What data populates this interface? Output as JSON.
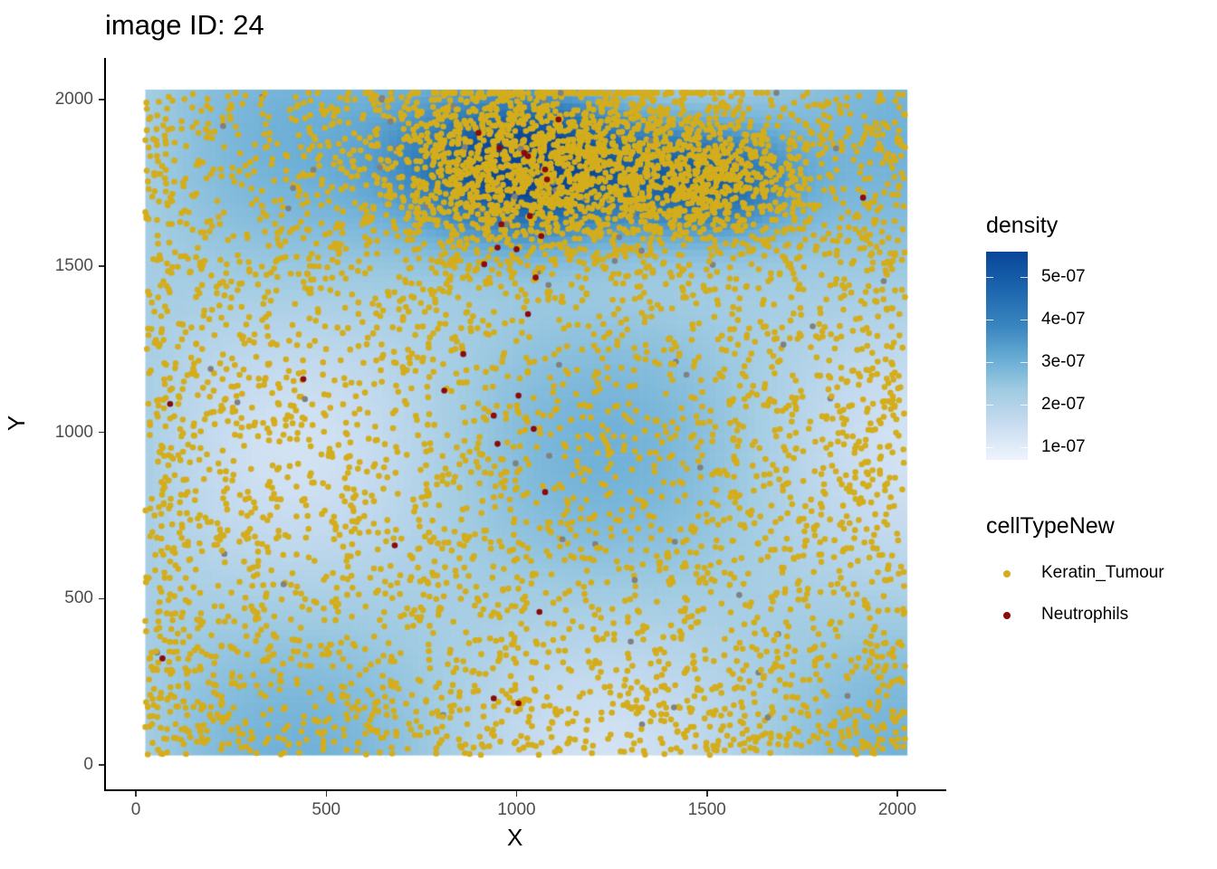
{
  "title": "image ID: 24",
  "axes": {
    "x_title": "X",
    "y_title": "Y",
    "x_ticks": [
      "0",
      "500",
      "1000",
      "1500",
      "2000"
    ],
    "y_ticks": [
      "0",
      "500",
      "1000",
      "1500",
      "2000"
    ]
  },
  "legend": {
    "density_title": "density",
    "density_labels": [
      "5e-07",
      "4e-07",
      "3e-07",
      "2e-07",
      "1e-07"
    ],
    "celltype_title": "cellTypeNew",
    "celltype_items": [
      {
        "label": "Keratin_Tumour",
        "color": "#d4ad1c"
      },
      {
        "label": "Neutrophils",
        "color": "#8b0a0a"
      }
    ]
  },
  "chart_data": {
    "type": "scatter",
    "title": "image ID: 24",
    "xlabel": "X",
    "ylabel": "Y",
    "xlim": [
      0,
      2030
    ],
    "ylim": [
      0,
      2030
    ],
    "grid": false,
    "legend_position": "right",
    "background": "2D density heatmap (Blues), high density near X 700-1700, Y 1500-2000",
    "density_range": [
      5e-08,
      5.6e-07
    ],
    "series": [
      {
        "name": "Keratin_Tumour",
        "color": "#d4ad1c",
        "approx_count": 5500,
        "note": "dense cluster X 650-1700, Y 1400-2020; scattered uniformly elsewhere X 25-2020, Y 30-2020"
      },
      {
        "name": "Other (grey)",
        "color": "#808080",
        "approx_count": 80
      },
      {
        "name": "Neutrophils",
        "color": "#8b0a0a",
        "points": [
          [
            900,
            1900
          ],
          [
            955,
            1855
          ],
          [
            1020,
            1840
          ],
          [
            1030,
            1830
          ],
          [
            1080,
            1760
          ],
          [
            1075,
            1790
          ],
          [
            1110,
            1940
          ],
          [
            1035,
            1650
          ],
          [
            960,
            1625
          ],
          [
            1065,
            1590
          ],
          [
            1000,
            1550
          ],
          [
            950,
            1555
          ],
          [
            915,
            1505
          ],
          [
            1050,
            1465
          ],
          [
            1030,
            1355
          ],
          [
            860,
            1235
          ],
          [
            810,
            1125
          ],
          [
            440,
            1160
          ],
          [
            90,
            1085
          ],
          [
            1005,
            1110
          ],
          [
            940,
            1050
          ],
          [
            1045,
            1010
          ],
          [
            950,
            965
          ],
          [
            1075,
            820
          ],
          [
            680,
            660
          ],
          [
            1060,
            460
          ],
          [
            70,
            320
          ],
          [
            940,
            200
          ],
          [
            1005,
            185
          ],
          [
            1910,
            1705
          ]
        ]
      }
    ]
  }
}
